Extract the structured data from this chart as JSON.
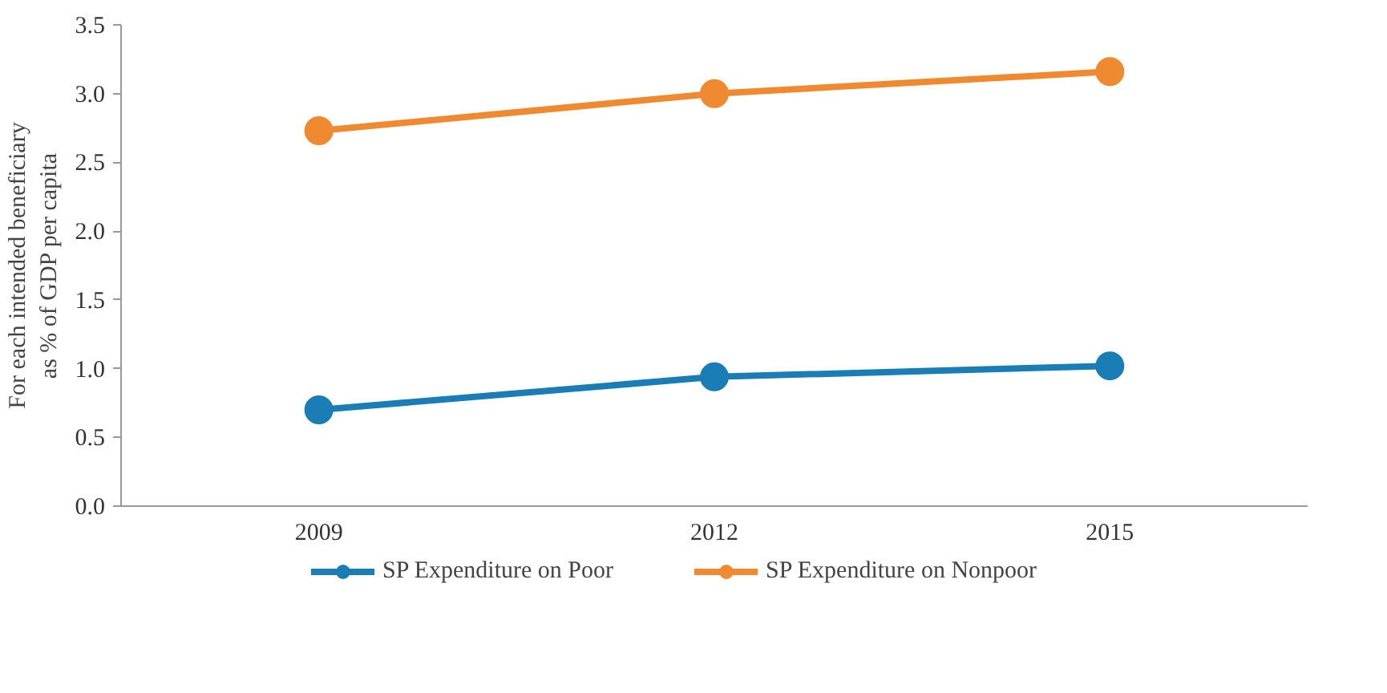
{
  "chart_data": {
    "type": "line",
    "ylabel": "For each intended beneficiary\nas % of GDP per capita",
    "categories": [
      "2009",
      "2012",
      "2015"
    ],
    "series": [
      {
        "name": "SP Expenditure on Poor",
        "color": "#1a7db5",
        "values": [
          0.7,
          0.94,
          1.02
        ]
      },
      {
        "name": "SP Expenditure on Nonpoor",
        "color": "#f08a30",
        "values": [
          2.73,
          3.0,
          3.16
        ]
      }
    ],
    "ylim": [
      0,
      3.5
    ],
    "yticks": [
      {
        "value": 0,
        "label": "0.0"
      },
      {
        "value": 0.5,
        "label": "0.5"
      },
      {
        "value": 1,
        "label": "1.0"
      },
      {
        "value": 1.5,
        "label": "1.5"
      },
      {
        "value": 2,
        "label": "2.0"
      },
      {
        "value": 2.5,
        "label": "2.5"
      },
      {
        "value": 3,
        "label": "3.0"
      },
      {
        "value": 3.5,
        "label": "3.5"
      }
    ],
    "grid": false,
    "legend": "bottom",
    "marker": "circle",
    "line_style": "solid"
  }
}
